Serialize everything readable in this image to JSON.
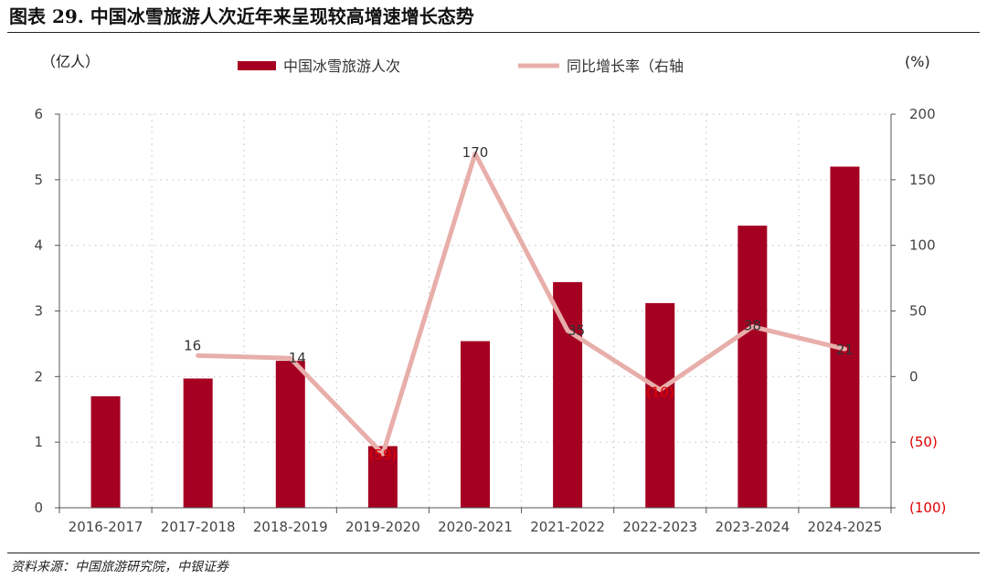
{
  "title": "图表 29. 中国冰雪旅游人次近年来呈现较高增速增长态势",
  "source": "资料来源：中国旅游研究院，中银证券",
  "chart_data": {
    "type": "bar+line",
    "categories": [
      "2016-2017",
      "2017-2018",
      "2018-2019",
      "2019-2020",
      "2020-2021",
      "2021-2022",
      "2022-2023",
      "2023-2024",
      "2024-2025"
    ],
    "series": [
      {
        "name": "中国冰雪旅游人次",
        "type": "bar",
        "axis": "left",
        "color": "#a50021",
        "values": [
          1.7,
          1.97,
          2.24,
          0.94,
          2.54,
          3.44,
          3.12,
          4.3,
          5.2
        ]
      },
      {
        "name": "同比增长率（右轴",
        "type": "line",
        "axis": "right",
        "color": "#e8aeaa",
        "values": [
          null,
          16,
          14,
          -59,
          170,
          35,
          -10,
          38,
          21
        ],
        "labels": [
          "",
          "16",
          "14",
          "(59)",
          "170",
          "35",
          "(10)",
          "38",
          "21"
        ]
      }
    ],
    "left_axis": {
      "unit": "（亿人）",
      "ylim": [
        0,
        6
      ],
      "ticks": [
        "0",
        "1",
        "2",
        "3",
        "4",
        "5",
        "6"
      ]
    },
    "right_axis": {
      "unit": "(%)",
      "ylim": [
        -100,
        200
      ],
      "ticks": [
        "(100)",
        "(50)",
        "0",
        "50",
        "100",
        "150",
        "200"
      ],
      "negative_color": "#e00000"
    },
    "grid": "dotted",
    "legend": "top"
  }
}
